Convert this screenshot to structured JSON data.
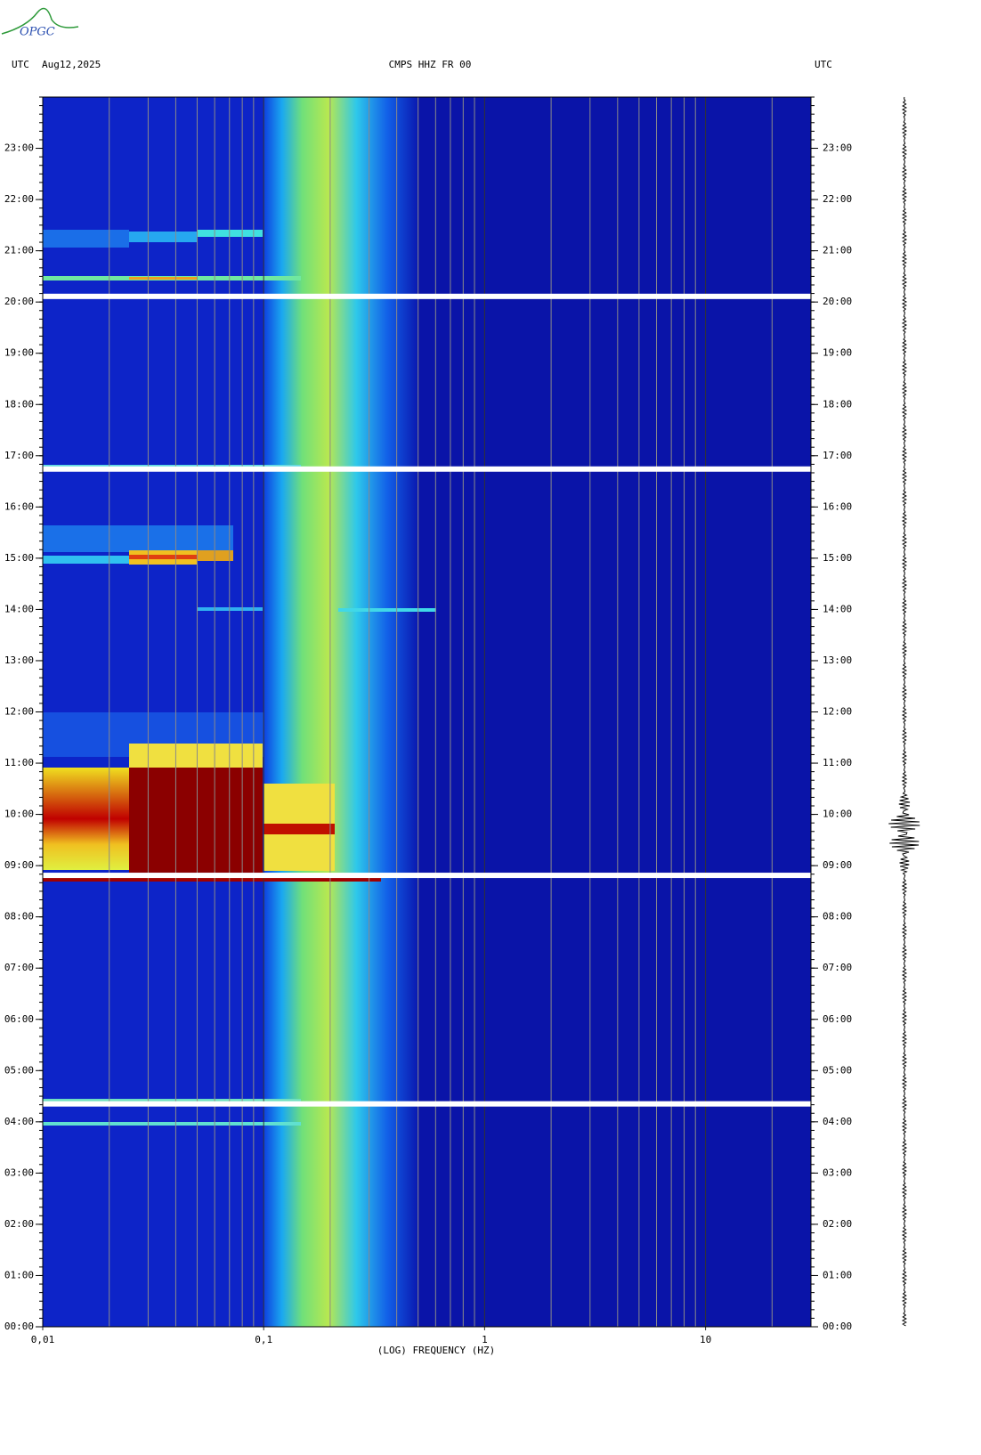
{
  "logo": "OPGC",
  "chart_data": {
    "type": "spectrogram",
    "title": "CMPS HHZ FR 00",
    "date": "Aug12,2025",
    "time_zone_left": "UTC",
    "time_zone_right": "UTC",
    "xlabel": "(LOG) FREQUENCY (HZ)",
    "xscale": "log",
    "xlim": [
      0.01,
      30
    ],
    "xticks": [
      {
        "value": 0.01,
        "label": "0,01"
      },
      {
        "value": 0.1,
        "label": "0,1"
      },
      1,
      10
    ],
    "xminorticks": [
      0.02,
      0.03,
      0.04,
      0.05,
      0.06,
      0.07,
      0.08,
      0.09,
      0.2,
      0.3,
      0.4,
      0.5,
      0.6,
      0.7,
      0.8,
      0.9,
      2,
      3,
      4,
      5,
      6,
      7,
      8,
      9,
      20
    ],
    "ylim": [
      0,
      24
    ],
    "yticks": [
      {
        "value": 0,
        "label": "00:00"
      },
      {
        "value": 1,
        "label": "01:00"
      },
      {
        "value": 2,
        "label": "02:00"
      },
      {
        "value": 3,
        "label": "03:00"
      },
      {
        "value": 4,
        "label": "04:00"
      },
      {
        "value": 5,
        "label": "05:00"
      },
      {
        "value": 6,
        "label": "06:00"
      },
      {
        "value": 7,
        "label": "07:00"
      },
      {
        "value": 8,
        "label": "08:00"
      },
      {
        "value": 9,
        "label": "09:00"
      },
      {
        "value": 10,
        "label": "10:00"
      },
      {
        "value": 11,
        "label": "11:00"
      },
      {
        "value": 12,
        "label": "12:00"
      },
      {
        "value": 13,
        "label": "13:00"
      },
      {
        "value": 14,
        "label": "14:00"
      },
      {
        "value": 15,
        "label": "15:00"
      },
      {
        "value": 16,
        "label": "16:00"
      },
      {
        "value": 17,
        "label": "17:00"
      },
      {
        "value": 18,
        "label": "18:00"
      },
      {
        "value": 19,
        "label": "19:00"
      },
      {
        "value": 20,
        "label": "20:00"
      },
      {
        "value": 21,
        "label": "21:00"
      },
      {
        "value": 22,
        "label": "22:00"
      },
      {
        "value": 23,
        "label": "23:00"
      }
    ],
    "gaps": [
      20.11,
      16.74,
      8.81,
      4.35
    ]
  }
}
